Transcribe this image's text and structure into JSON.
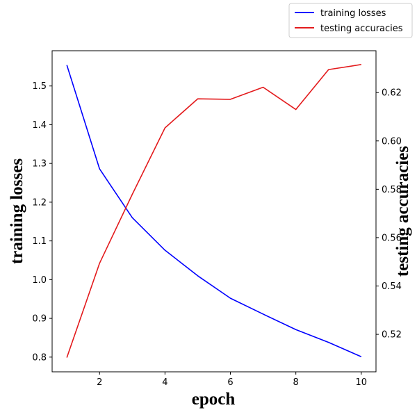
{
  "chart_data": {
    "type": "line",
    "x": [
      1,
      2,
      3,
      4,
      5,
      6,
      7,
      8,
      9,
      10
    ],
    "xlabel": "epoch",
    "xlim": [
      0.55,
      10.45
    ],
    "xticks": [
      2,
      4,
      6,
      8,
      10
    ],
    "y_left": {
      "label": "training losses",
      "lim": [
        0.762,
        1.591
      ],
      "ticks": [
        "0.8",
        "0.9",
        "1.0",
        "1.1",
        "1.2",
        "1.3",
        "1.4",
        "1.5"
      ],
      "tick_values": [
        0.8,
        0.9,
        1.0,
        1.1,
        1.2,
        1.3,
        1.4,
        1.5
      ]
    },
    "y_right": {
      "label": "testing accuracies",
      "lim": [
        0.5045,
        0.6373
      ],
      "ticks": [
        "0.52",
        "0.54",
        "0.56",
        "0.58",
        "0.60",
        "0.62"
      ],
      "tick_values": [
        0.52,
        0.54,
        0.56,
        0.58,
        0.6,
        0.62
      ]
    },
    "series": [
      {
        "name": "training losses",
        "axis": "left",
        "color": "#0000ff",
        "values": [
          1.554,
          1.286,
          1.16,
          1.076,
          1.01,
          0.952,
          0.911,
          0.871,
          0.838,
          0.801
        ]
      },
      {
        "name": "testing accuracies",
        "axis": "right",
        "color": "#e31a1c",
        "values": [
          0.5104,
          0.5494,
          0.5779,
          0.6054,
          0.6174,
          0.6172,
          0.6222,
          0.613,
          0.6295,
          0.6316
        ]
      }
    ],
    "legend_position": "top-right",
    "grid": false
  }
}
